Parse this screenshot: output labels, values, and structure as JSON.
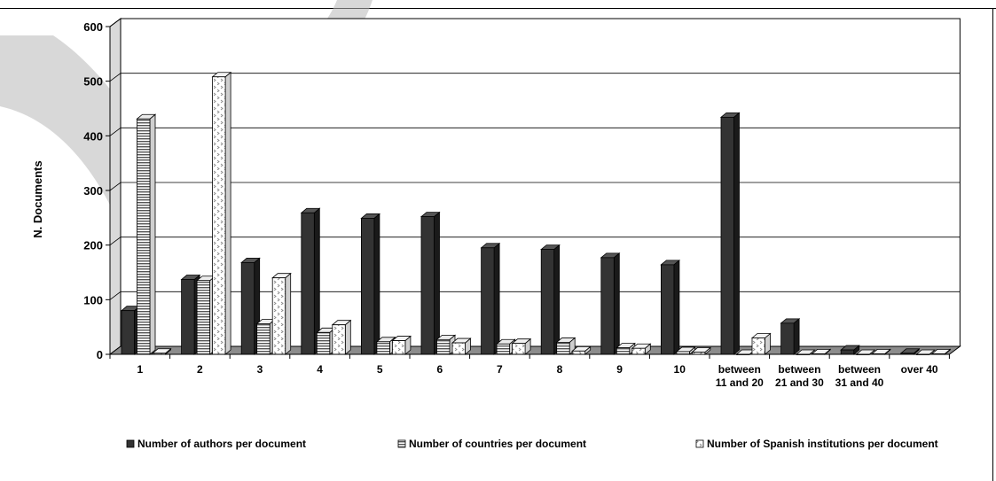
{
  "chart_data": {
    "type": "bar",
    "style": "3d-clustered-column",
    "title": "",
    "xlabel": "",
    "ylabel": "N. Documents",
    "ylim": [
      0,
      600
    ],
    "yticks": [
      0,
      100,
      200,
      300,
      400,
      500,
      600
    ],
    "grid": true,
    "legend_position": "bottom",
    "categories": [
      [
        "1"
      ],
      [
        "2"
      ],
      [
        "3"
      ],
      [
        "4"
      ],
      [
        "5"
      ],
      [
        "6"
      ],
      [
        "7"
      ],
      [
        "8"
      ],
      [
        "9"
      ],
      [
        "10"
      ],
      [
        "between",
        "11 and 20"
      ],
      [
        "between",
        "21 and 30"
      ],
      [
        "between",
        "31 and 40"
      ],
      [
        "over 40"
      ]
    ],
    "series": [
      {
        "name": "Number of authors per document",
        "pattern": "solid-dark",
        "color": "#333333",
        "values": [
          80,
          137,
          168,
          259,
          249,
          252,
          195,
          192,
          177,
          164,
          434,
          57,
          8,
          2
        ]
      },
      {
        "name": "Number of countries per document",
        "pattern": "horizontal-stripes",
        "color": "#d0d0d0",
        "values": [
          431,
          135,
          56,
          40,
          23,
          27,
          19,
          22,
          12,
          5,
          0,
          0,
          0,
          0
        ]
      },
      {
        "name": "Number of Spanish institutions per document",
        "pattern": "dotted",
        "color": "#ffffff",
        "values": [
          2,
          508,
          140,
          54,
          25,
          21,
          20,
          6,
          11,
          4,
          30,
          1,
          1,
          1
        ]
      }
    ]
  }
}
